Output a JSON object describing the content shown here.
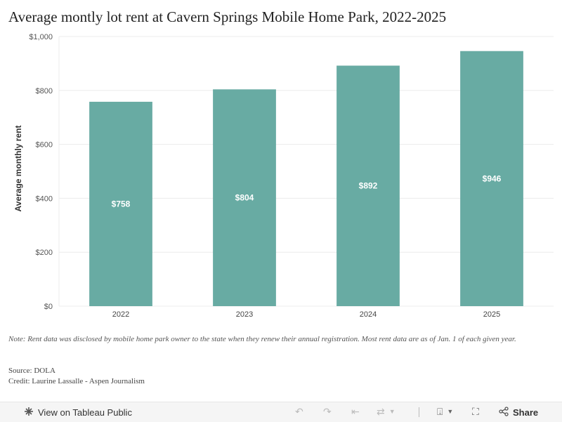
{
  "title": "Average montly lot rent at Cavern Springs Mobile Home Park, 2022-2025",
  "note": "Note: Rent data was disclosed by mobile home park owner to the state when they renew their annual registration. Most rent data are as of Jan. 1 of each given year.",
  "source": "Source: DOLA",
  "credit": "Credit: Laurine Lassalle - Aspen Journalism",
  "chart_data": {
    "type": "bar",
    "categories": [
      "2022",
      "2023",
      "2024",
      "2025"
    ],
    "values": [
      758,
      804,
      892,
      946
    ],
    "data_labels": [
      "$758",
      "$804",
      "$892",
      "$946"
    ],
    "ylabel": "Average monthly rent",
    "xlabel": "",
    "ylim": [
      0,
      1000
    ],
    "yticks": [
      0,
      200,
      400,
      600,
      800,
      1000
    ],
    "ytick_labels": [
      "$0",
      "$200",
      "$400",
      "$600",
      "$800",
      "$1,000"
    ],
    "bar_color": "#68aba3",
    "grid": true
  },
  "toolbar": {
    "view_label": "View on Tableau Public",
    "share_label": "Share",
    "icons": {
      "tableau": "tableau-logo-icon",
      "undo": "undo-icon",
      "redo": "redo-icon",
      "revert": "revert-icon",
      "refresh": "refresh-icon",
      "download": "download-icon",
      "fullscreen": "fullscreen-icon",
      "share": "share-icon"
    }
  }
}
